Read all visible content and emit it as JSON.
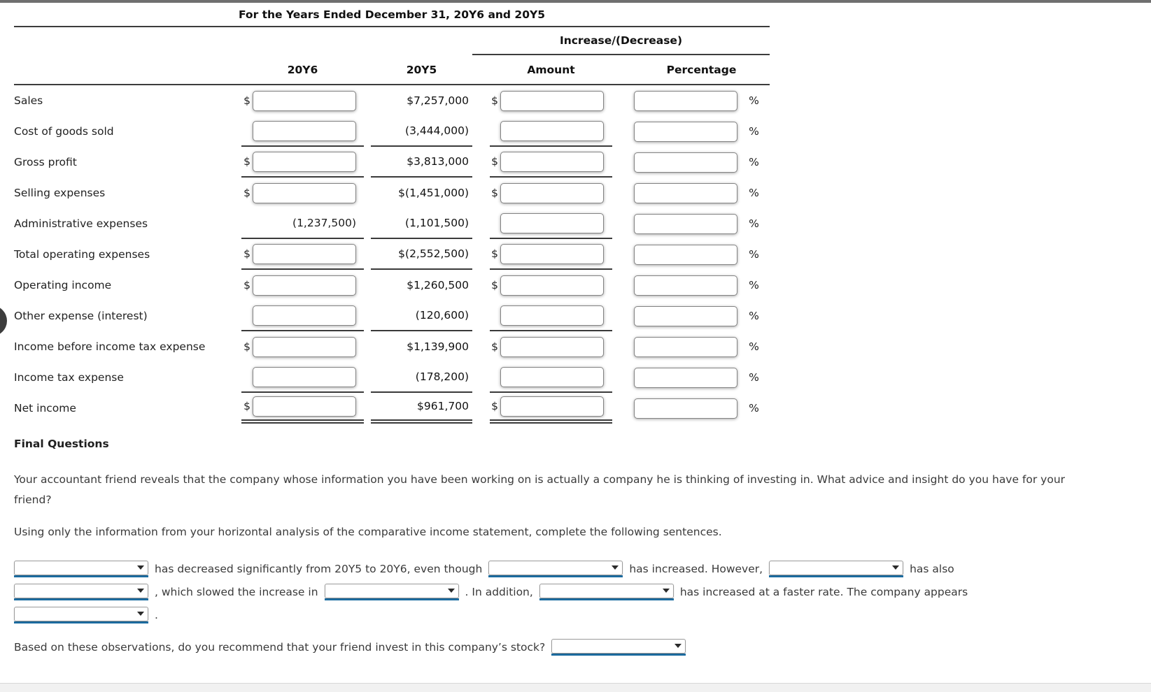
{
  "page": {
    "accent_blue": "#1e6fa4"
  },
  "statement": {
    "title": "For the Years Ended December 31, 20Y6 and 20Y5",
    "increase_decrease_header": "Increase/(Decrease)",
    "columns": {
      "y6": "20Y6",
      "y5": "20Y5",
      "amount": "Amount",
      "percentage": "Percentage"
    },
    "dollar": "$",
    "percent": "%",
    "rows": [
      {
        "label": "Sales",
        "y6": {
          "type": "input",
          "dollar": true
        },
        "y5": "$7,257,000",
        "amount": {
          "dollar": true
        },
        "rule": "none"
      },
      {
        "label": "Cost of goods sold",
        "y6": {
          "type": "input",
          "dollar": false
        },
        "y5": "(3,444,000)",
        "amount": {
          "dollar": false
        },
        "rule": "single"
      },
      {
        "label": "Gross profit",
        "y6": {
          "type": "input",
          "dollar": true
        },
        "y5": "$3,813,000",
        "amount": {
          "dollar": true
        },
        "rule": "single"
      },
      {
        "label": "Selling expenses",
        "y6": {
          "type": "input",
          "dollar": true
        },
        "y5": "$(1,451,000)",
        "amount": {
          "dollar": true
        },
        "rule": "none"
      },
      {
        "label": "Administrative expenses",
        "y6": {
          "type": "static",
          "text": "(1,237,500)"
        },
        "y5": "(1,101,500)",
        "amount": {
          "dollar": false
        },
        "rule": "single"
      },
      {
        "label": "Total operating expenses",
        "y6": {
          "type": "input",
          "dollar": true
        },
        "y5": "$(2,552,500)",
        "amount": {
          "dollar": true
        },
        "rule": "single"
      },
      {
        "label": "Operating income",
        "y6": {
          "type": "input",
          "dollar": true
        },
        "y5": "$1,260,500",
        "amount": {
          "dollar": true
        },
        "rule": "none"
      },
      {
        "label": "Other expense (interest)",
        "y6": {
          "type": "input",
          "dollar": false
        },
        "y5": "(120,600)",
        "amount": {
          "dollar": false
        },
        "rule": "single"
      },
      {
        "label": "Income before income tax expense",
        "y6": {
          "type": "input",
          "dollar": true
        },
        "y5": "$1,139,900",
        "amount": {
          "dollar": true
        },
        "rule": "none"
      },
      {
        "label": "Income tax expense",
        "y6": {
          "type": "input",
          "dollar": false
        },
        "y5": "(178,200)",
        "amount": {
          "dollar": false
        },
        "rule": "single"
      },
      {
        "label": "Net income",
        "y6": {
          "type": "input",
          "dollar": true
        },
        "y5": "$961,700",
        "amount": {
          "dollar": true
        },
        "rule": "double"
      }
    ]
  },
  "final_questions": {
    "heading": "Final Questions",
    "paragraph1": "Your accountant friend reveals that the company whose information you have been working on is actually a company he is thinking of investing in. What advice and insight do you have for your friend?",
    "paragraph2": "Using only the information from your horizontal analysis of the comparative income statement, complete the following sentences.",
    "seg1": "has decreased significantly from 20Y5 to 20Y6, even though",
    "seg2": "has increased. However,",
    "seg3": "has also",
    "seg4": ", which slowed the increase in",
    "seg5": ". In addition,",
    "seg6": "has increased at a faster rate. The company appears",
    "seg7": ".",
    "recommend_question": "Based on these observations, do you recommend that your friend invest in this company’s stock?"
  }
}
